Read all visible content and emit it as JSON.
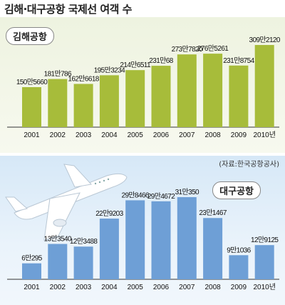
{
  "title": "김해·대구공항 국제선 여객 수",
  "source": "(자료:한국공항공사)",
  "chart_data": [
    {
      "type": "bar",
      "name": "김해공항",
      "color": "#a7bc3a",
      "categories": [
        "2001",
        "2002",
        "2003",
        "2004",
        "2005",
        "2006",
        "2007",
        "2008",
        "2009",
        "2010년"
      ],
      "values": [
        1505660,
        1810786,
        1626618,
        1953234,
        2146511,
        2310068,
        2737820,
        2765261,
        2318754,
        3092120
      ],
      "value_labels": [
        "150만5660",
        "181만786",
        "162만6618",
        "195만3234",
        "214만6511",
        "231만68",
        "273만7820",
        "276만5261",
        "231만8754",
        "309만2120"
      ]
    },
    {
      "type": "bar",
      "name": "대구공항",
      "color": "#6e9fd6",
      "categories": [
        "2001",
        "2002",
        "2003",
        "2004",
        "2005",
        "2006",
        "2007",
        "2008",
        "2009",
        "2010년"
      ],
      "values": [
        60295,
        133540,
        123488,
        229203,
        298466,
        294672,
        310350,
        231467,
        91036,
        129125
      ],
      "value_labels": [
        "6만295",
        "13만3540",
        "12만3488",
        "22만9203",
        "29만8466",
        "29만4672",
        "31만350",
        "23만1467",
        "9만1036",
        "12만9125"
      ]
    }
  ]
}
